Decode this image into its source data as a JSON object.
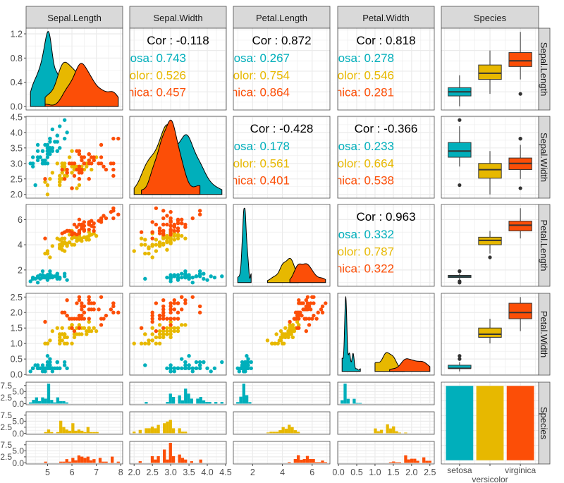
{
  "chart_data": {
    "type": "scatter-matrix",
    "variables": [
      "Sepal.Length",
      "Sepal.Width",
      "Petal.Length",
      "Petal.Width",
      "Species"
    ],
    "species": [
      "setosa",
      "versicolor",
      "virginica"
    ],
    "species_labels": [
      "setosa: ",
      "versicolor: ",
      "virginica: "
    ],
    "colors": {
      "setosa": "#00AFBB",
      "versicolor": "#E7B800",
      "virginica": "#FC4E07"
    },
    "axes": {
      "Sepal.Length": {
        "ticks": [
          5,
          6,
          7,
          8
        ],
        "labels": [
          "5",
          "6",
          "7",
          "8"
        ]
      },
      "Sepal.Width": {
        "ticks": [
          2.0,
          2.5,
          3.0,
          3.5,
          4.0,
          4.5
        ],
        "labels": [
          "2.0",
          "2.5",
          "3.0",
          "3.5",
          "4.0",
          "4.5"
        ]
      },
      "Petal.Length": {
        "ticks": [
          2,
          4,
          6
        ],
        "labels": [
          "2",
          "4",
          "6"
        ]
      },
      "Petal.Width": {
        "ticks": [
          0,
          0.5,
          1.0,
          1.5,
          2.0,
          2.5
        ],
        "labels": [
          "0.0",
          "0.5",
          "1.0",
          "1.5",
          "2.0",
          "2.5"
        ]
      },
      "density_row1": {
        "ticks": [
          0,
          0.4,
          0.8,
          1.2
        ],
        "labels": [
          "0.0",
          "0.4",
          "0.8",
          "1.2"
        ]
      },
      "count": {
        "ticks": [
          0,
          2.5,
          5,
          7.5
        ],
        "labels": [
          "0.0",
          "2.5",
          "5.0",
          "7.5"
        ]
      }
    },
    "correlations": [
      {
        "row": 0,
        "col": 1,
        "overall": "Cor : -0.118",
        "groups": [
          "0.743",
          "0.526",
          "0.457"
        ]
      },
      {
        "row": 0,
        "col": 2,
        "overall": "Cor : 0.872",
        "groups": [
          "0.267",
          "0.754",
          "0.864"
        ]
      },
      {
        "row": 0,
        "col": 3,
        "overall": "Cor : 0.818",
        "groups": [
          "0.278",
          "0.546",
          "0.281"
        ]
      },
      {
        "row": 1,
        "col": 2,
        "overall": "Cor : -0.428",
        "groups": [
          "0.178",
          "0.561",
          "0.401"
        ]
      },
      {
        "row": 1,
        "col": 3,
        "overall": "Cor : -0.366",
        "groups": [
          "0.233",
          "0.664",
          "0.538"
        ]
      },
      {
        "row": 2,
        "col": 3,
        "overall": "Cor : 0.963",
        "groups": [
          "0.332",
          "0.787",
          "0.322"
        ]
      }
    ],
    "values": {
      "setosa": {
        "Sepal.Length": [
          5.1,
          4.9,
          4.7,
          4.6,
          5.0,
          5.4,
          4.6,
          5.0,
          4.4,
          4.9,
          5.4,
          4.8,
          4.8,
          4.3,
          5.8,
          5.7,
          5.4,
          5.1,
          5.7,
          5.1,
          5.4,
          5.1,
          4.6,
          5.1,
          4.8,
          5.0,
          5.0,
          5.2,
          5.2,
          4.7,
          4.8,
          5.4,
          5.2,
          5.5,
          4.9,
          5.0,
          5.5,
          4.9,
          4.4,
          5.1,
          5.0,
          4.5,
          4.4,
          5.0,
          5.1,
          4.8,
          5.1,
          4.6,
          5.3,
          5.0
        ],
        "Sepal.Width": [
          3.5,
          3.0,
          3.2,
          3.1,
          3.6,
          3.9,
          3.4,
          3.4,
          2.9,
          3.1,
          3.7,
          3.4,
          3.0,
          3.0,
          4.0,
          4.4,
          3.9,
          3.5,
          3.8,
          3.8,
          3.4,
          3.7,
          3.6,
          3.3,
          3.4,
          3.0,
          3.4,
          3.5,
          3.4,
          3.2,
          3.1,
          3.4,
          4.1,
          4.2,
          3.1,
          3.2,
          3.5,
          3.6,
          3.0,
          3.4,
          3.5,
          2.3,
          3.2,
          3.5,
          3.8,
          3.0,
          3.8,
          3.2,
          3.7,
          3.3
        ],
        "Petal.Length": [
          1.4,
          1.4,
          1.3,
          1.5,
          1.4,
          1.7,
          1.4,
          1.5,
          1.4,
          1.5,
          1.5,
          1.6,
          1.4,
          1.1,
          1.2,
          1.5,
          1.3,
          1.4,
          1.7,
          1.5,
          1.7,
          1.5,
          1.0,
          1.7,
          1.9,
          1.6,
          1.6,
          1.5,
          1.4,
          1.6,
          1.6,
          1.5,
          1.5,
          1.4,
          1.5,
          1.2,
          1.3,
          1.4,
          1.3,
          1.5,
          1.3,
          1.3,
          1.3,
          1.6,
          1.9,
          1.4,
          1.6,
          1.4,
          1.5,
          1.4
        ],
        "Petal.Width": [
          0.2,
          0.2,
          0.2,
          0.2,
          0.2,
          0.4,
          0.3,
          0.2,
          0.2,
          0.1,
          0.2,
          0.2,
          0.1,
          0.1,
          0.2,
          0.4,
          0.4,
          0.3,
          0.3,
          0.3,
          0.2,
          0.4,
          0.2,
          0.5,
          0.2,
          0.2,
          0.4,
          0.2,
          0.2,
          0.2,
          0.2,
          0.4,
          0.1,
          0.2,
          0.2,
          0.2,
          0.2,
          0.1,
          0.2,
          0.2,
          0.3,
          0.3,
          0.2,
          0.6,
          0.4,
          0.3,
          0.2,
          0.2,
          0.2,
          0.2
        ]
      },
      "versicolor": {
        "Sepal.Length": [
          7.0,
          6.4,
          6.9,
          5.5,
          6.5,
          5.7,
          6.3,
          4.9,
          6.6,
          5.2,
          5.0,
          5.9,
          6.0,
          6.1,
          5.6,
          6.7,
          5.6,
          5.8,
          6.2,
          5.6,
          5.9,
          6.1,
          6.3,
          6.1,
          6.4,
          6.6,
          6.8,
          6.7,
          6.0,
          5.7,
          5.5,
          5.5,
          5.8,
          6.0,
          5.4,
          6.0,
          6.7,
          6.3,
          5.6,
          5.5,
          5.5,
          6.1,
          5.8,
          5.0,
          5.6,
          5.7,
          5.7,
          6.2,
          5.1,
          5.7
        ],
        "Sepal.Width": [
          3.2,
          3.2,
          3.1,
          2.3,
          2.8,
          2.8,
          3.3,
          2.4,
          2.9,
          2.7,
          2.0,
          3.0,
          2.2,
          2.9,
          2.9,
          3.1,
          3.0,
          2.7,
          2.2,
          2.5,
          3.2,
          2.8,
          2.5,
          2.8,
          2.9,
          3.0,
          2.8,
          3.0,
          2.9,
          2.6,
          2.4,
          2.4,
          2.7,
          2.7,
          3.0,
          3.4,
          3.1,
          2.3,
          3.0,
          2.5,
          2.6,
          3.0,
          2.6,
          2.3,
          2.7,
          3.0,
          2.9,
          2.9,
          2.5,
          2.8
        ],
        "Petal.Length": [
          4.7,
          4.5,
          4.9,
          4.0,
          4.6,
          4.5,
          4.7,
          3.3,
          4.6,
          3.9,
          3.5,
          4.2,
          4.0,
          4.7,
          3.6,
          4.4,
          4.5,
          4.1,
          4.5,
          3.9,
          4.8,
          4.0,
          4.9,
          4.7,
          4.3,
          4.4,
          4.8,
          5.0,
          4.5,
          3.5,
          3.8,
          3.7,
          3.9,
          5.1,
          4.5,
          4.5,
          4.7,
          4.4,
          4.1,
          4.0,
          4.4,
          4.6,
          4.0,
          3.3,
          4.2,
          4.2,
          4.2,
          4.3,
          3.0,
          4.1
        ],
        "Petal.Width": [
          1.4,
          1.5,
          1.5,
          1.3,
          1.5,
          1.3,
          1.6,
          1.0,
          1.3,
          1.4,
          1.0,
          1.5,
          1.0,
          1.4,
          1.3,
          1.4,
          1.5,
          1.0,
          1.5,
          1.1,
          1.8,
          1.3,
          1.5,
          1.2,
          1.3,
          1.4,
          1.4,
          1.7,
          1.5,
          1.0,
          1.1,
          1.0,
          1.2,
          1.6,
          1.5,
          1.6,
          1.5,
          1.3,
          1.3,
          1.3,
          1.2,
          1.4,
          1.2,
          1.0,
          1.3,
          1.2,
          1.3,
          1.3,
          1.1,
          1.3
        ]
      },
      "virginica": {
        "Sepal.Length": [
          6.3,
          5.8,
          7.1,
          6.3,
          6.5,
          7.6,
          4.9,
          7.3,
          6.7,
          7.2,
          6.5,
          6.4,
          6.8,
          5.7,
          5.8,
          6.4,
          6.5,
          7.7,
          7.7,
          6.0,
          6.9,
          5.6,
          7.7,
          6.3,
          6.7,
          7.2,
          6.2,
          6.1,
          6.4,
          7.2,
          7.4,
          7.9,
          6.4,
          6.3,
          6.1,
          7.7,
          6.3,
          6.4,
          6.0,
          6.9,
          6.7,
          6.9,
          5.8,
          6.8,
          6.7,
          6.7,
          6.3,
          6.5,
          6.2,
          5.9
        ],
        "Sepal.Width": [
          3.3,
          2.7,
          3.0,
          2.9,
          3.0,
          3.0,
          2.5,
          2.9,
          2.5,
          3.6,
          3.2,
          2.7,
          3.0,
          2.5,
          2.8,
          3.2,
          3.0,
          3.8,
          2.6,
          2.2,
          3.2,
          2.8,
          2.8,
          2.7,
          3.3,
          3.2,
          2.8,
          3.0,
          2.8,
          3.0,
          2.8,
          3.8,
          2.8,
          2.8,
          2.6,
          3.0,
          3.4,
          3.1,
          3.0,
          3.1,
          3.1,
          3.1,
          2.7,
          3.2,
          3.3,
          3.0,
          2.5,
          3.0,
          3.4,
          3.0
        ],
        "Petal.Length": [
          6.0,
          5.1,
          5.9,
          5.6,
          5.8,
          6.6,
          4.5,
          6.3,
          5.8,
          6.1,
          5.1,
          5.3,
          5.5,
          5.0,
          5.1,
          5.3,
          5.5,
          6.7,
          6.9,
          5.0,
          5.7,
          4.9,
          6.7,
          4.9,
          5.7,
          6.0,
          4.8,
          4.9,
          5.6,
          5.8,
          6.1,
          6.4,
          5.6,
          5.1,
          5.6,
          6.1,
          5.6,
          5.5,
          4.8,
          5.4,
          5.6,
          5.1,
          5.1,
          5.9,
          5.7,
          5.2,
          5.0,
          5.2,
          5.4,
          5.1
        ],
        "Petal.Width": [
          2.5,
          1.9,
          2.1,
          1.8,
          2.2,
          2.1,
          1.7,
          1.8,
          1.8,
          2.5,
          2.0,
          1.9,
          2.1,
          2.0,
          2.4,
          2.3,
          1.8,
          2.2,
          2.3,
          1.5,
          2.3,
          2.0,
          2.0,
          1.8,
          2.1,
          1.8,
          1.8,
          1.8,
          2.1,
          1.6,
          1.9,
          2.0,
          2.2,
          1.5,
          1.4,
          2.3,
          2.4,
          1.8,
          1.8,
          2.1,
          2.4,
          2.3,
          1.9,
          2.3,
          2.5,
          2.3,
          1.9,
          2.0,
          2.3,
          1.8
        ]
      }
    },
    "species_counts": [
      50,
      50,
      50
    ],
    "grid": true,
    "legend": "none"
  }
}
